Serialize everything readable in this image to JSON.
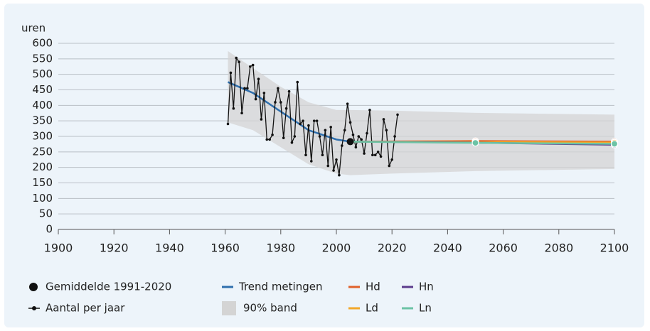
{
  "chart_data": {
    "type": "line",
    "ylabel": "uren",
    "xlim": [
      1900,
      2100
    ],
    "xticks": [
      1900,
      1920,
      1940,
      1960,
      1980,
      2000,
      2020,
      2040,
      2060,
      2080,
      2100
    ],
    "ylim": [
      0,
      600
    ],
    "yticks": [
      0,
      50,
      100,
      150,
      200,
      250,
      300,
      350,
      400,
      450,
      500,
      550,
      600
    ],
    "grid": true,
    "bands": [
      {
        "name": "90% band",
        "color": "#d4d4d4",
        "x": [
          1961,
          1970,
          1980,
          1990,
          2000,
          2005,
          2020,
          2050,
          2100
        ],
        "lower": [
          345,
          320,
          265,
          210,
          180,
          175,
          180,
          188,
          195
        ],
        "upper": [
          575,
          520,
          460,
          410,
          385,
          385,
          383,
          376,
          370
        ]
      }
    ],
    "series": [
      {
        "name": "Gemiddelde 1991-2020",
        "color": "#111111",
        "marker": "big-dot",
        "x": [
          2005
        ],
        "values": [
          283
        ]
      },
      {
        "name": "Aantal per jaar",
        "color": "#111111",
        "marker": "dot",
        "x": [
          1961,
          1962,
          1963,
          1964,
          1965,
          1966,
          1967,
          1968,
          1969,
          1970,
          1971,
          1972,
          1973,
          1974,
          1975,
          1976,
          1977,
          1978,
          1979,
          1980,
          1981,
          1982,
          1983,
          1984,
          1985,
          1986,
          1987,
          1988,
          1989,
          1990,
          1991,
          1992,
          1993,
          1994,
          1995,
          1996,
          1997,
          1998,
          1999,
          2000,
          2001,
          2002,
          2003,
          2004,
          2005,
          2006,
          2007,
          2008,
          2009,
          2010,
          2011,
          2012,
          2013,
          2014,
          2015,
          2016,
          2017,
          2018,
          2019,
          2020,
          2021,
          2022
        ],
        "values": [
          340,
          505,
          390,
          553,
          540,
          375,
          455,
          455,
          525,
          530,
          420,
          485,
          355,
          440,
          290,
          290,
          305,
          410,
          455,
          410,
          295,
          390,
          445,
          280,
          300,
          475,
          340,
          350,
          240,
          335,
          220,
          350,
          350,
          300,
          240,
          320,
          205,
          330,
          190,
          225,
          175,
          270,
          320,
          405,
          345,
          305,
          265,
          300,
          290,
          245,
          310,
          385,
          240,
          240,
          250,
          235,
          355,
          320,
          205,
          225,
          300,
          370
        ]
      },
      {
        "name": "Trend metingen",
        "color": "#2f6fad",
        "x": [
          1961,
          1970,
          1980,
          1990,
          2000,
          2005
        ],
        "values": [
          475,
          440,
          380,
          320,
          290,
          283
        ]
      },
      {
        "name": "Hd",
        "color": "#e0602a",
        "marker": "end-dots",
        "x": [
          2005,
          2050,
          2100
        ],
        "values": [
          283,
          285,
          283
        ]
      },
      {
        "name": "Ld",
        "color": "#f3a82a",
        "marker": "end-dots",
        "x": [
          2005,
          2050,
          2100
        ],
        "values": [
          283,
          282,
          280
        ]
      },
      {
        "name": "Hn",
        "color": "#5b3b8c",
        "marker": "end-dots",
        "x": [
          2005,
          2050,
          2100
        ],
        "values": [
          283,
          280,
          273
        ]
      },
      {
        "name": "Ln",
        "color": "#6cc3a5",
        "marker": "end-dots",
        "x": [
          2005,
          2050,
          2100
        ],
        "values": [
          283,
          279,
          276
        ]
      }
    ]
  }
}
